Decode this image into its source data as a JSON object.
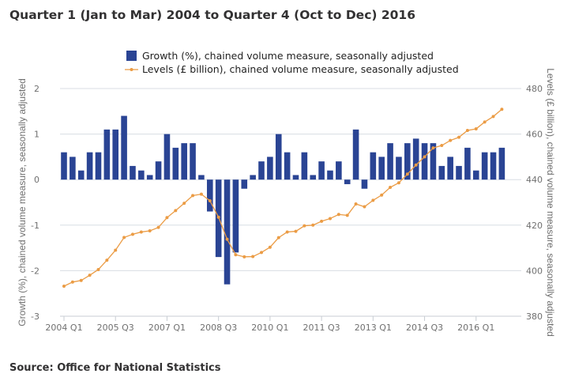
{
  "title": "Quarter 1 (Jan to Mar) 2004 to Quarter 4 (Oct to Dec) 2016",
  "source": "Source: Office for National Statistics",
  "chart_data": {
    "type": "bar+line",
    "grid": true,
    "legend_placement": "top",
    "colors": {
      "growth": "#2a4494",
      "levels": "#eb9c45"
    },
    "x_tick_labels": [
      "2004 Q1",
      "2005 Q3",
      "2007 Q1",
      "2008 Q3",
      "2010 Q1",
      "2011 Q3",
      "2013 Q1",
      "2014 Q3",
      "2016 Q1"
    ],
    "x_start": "2004 Q1",
    "x_end": "2016 Q4",
    "y_left": {
      "label": "Growth (%), chained volume measure, seasonally adjusted",
      "range": [
        -3,
        2
      ],
      "ticks": [
        -3,
        -2,
        -1,
        0,
        1,
        2
      ]
    },
    "y_right": {
      "label": "Levels (£ billion), chained volume measure, seasonally adjusted",
      "range": [
        380,
        480
      ],
      "ticks": [
        380,
        400,
        420,
        440,
        460,
        480
      ]
    },
    "series": [
      {
        "name": "Growth (%), chained volume measure, seasonally adjusted",
        "type": "bar",
        "axis": "left",
        "values": [
          0.6,
          0.5,
          0.2,
          0.6,
          0.6,
          1.1,
          1.1,
          1.4,
          0.3,
          0.2,
          0.1,
          0.4,
          1.0,
          0.7,
          0.8,
          0.8,
          0.1,
          -0.7,
          -1.7,
          -2.3,
          -1.6,
          -0.2,
          0.1,
          0.4,
          0.5,
          1.0,
          0.6,
          0.1,
          0.6,
          0.1,
          0.4,
          0.2,
          0.4,
          -0.1,
          1.1,
          -0.2,
          0.6,
          0.5,
          0.8,
          0.5,
          0.8,
          0.9,
          0.8,
          0.8,
          0.3,
          0.5,
          0.3,
          0.7,
          0.2,
          0.6,
          0.6,
          0.7
        ]
      },
      {
        "name": "Levels (£ billion), chained volume measure, seasonally adjusted",
        "type": "line",
        "axis": "right",
        "values": [
          393.2,
          395,
          395.7,
          398,
          400.5,
          404.6,
          409,
          414.6,
          416,
          417,
          417.5,
          419,
          423.3,
          426.4,
          429.6,
          433,
          433.6,
          430.7,
          423.5,
          413.8,
          407,
          406.1,
          406.2,
          408,
          410.3,
          414.5,
          417,
          417.3,
          419.7,
          420,
          421.7,
          422.9,
          424.7,
          424.3,
          429.3,
          428.1,
          430.9,
          433.2,
          436.6,
          438.6,
          442.4,
          446.4,
          450,
          453.9,
          455,
          457.2,
          458.6,
          461.6,
          462.3,
          465.3,
          467.7,
          470.9
        ]
      }
    ]
  }
}
